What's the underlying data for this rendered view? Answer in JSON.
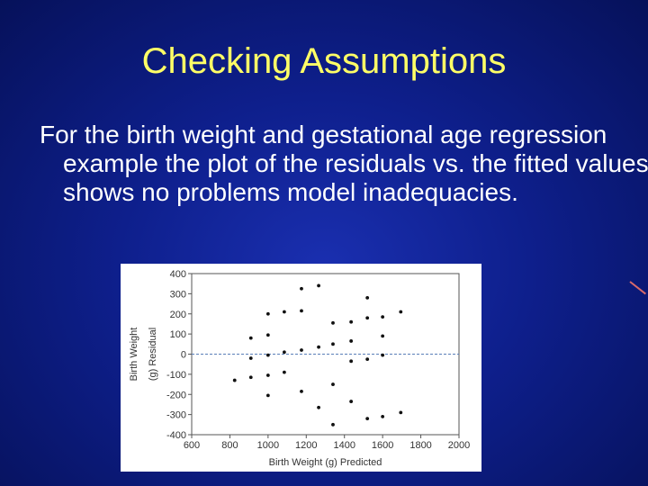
{
  "slide": {
    "title": "Checking Assumptions",
    "body": "For the birth weight and gestational age regression example the plot of the residuals vs. the fitted values shows no problems model inadequacies."
  },
  "chart_data": {
    "type": "scatter",
    "xlabel": "Birth Weight (g) Predicted",
    "ylabel_lines": [
      "Birth Weight",
      "(g) Residual"
    ],
    "xlim": [
      600,
      2000
    ],
    "ylim": [
      -400,
      400
    ],
    "xticks": [
      600,
      800,
      1000,
      1200,
      1400,
      1600,
      1800,
      2000
    ],
    "yticks": [
      400,
      300,
      200,
      100,
      0,
      -100,
      -200,
      -300,
      -400
    ],
    "reference_line": {
      "y": 0,
      "style": "dashed",
      "color": "#5a7fb8"
    },
    "grid": false,
    "points": [
      {
        "x": 825,
        "y": -130
      },
      {
        "x": 910,
        "y": 80
      },
      {
        "x": 910,
        "y": -20
      },
      {
        "x": 910,
        "y": -115
      },
      {
        "x": 1000,
        "y": 200
      },
      {
        "x": 1000,
        "y": 95
      },
      {
        "x": 1000,
        "y": -5
      },
      {
        "x": 1000,
        "y": -105
      },
      {
        "x": 1000,
        "y": -205
      },
      {
        "x": 1085,
        "y": 210
      },
      {
        "x": 1085,
        "y": 10
      },
      {
        "x": 1085,
        "y": -90
      },
      {
        "x": 1175,
        "y": 325
      },
      {
        "x": 1175,
        "y": 215
      },
      {
        "x": 1175,
        "y": 20
      },
      {
        "x": 1175,
        "y": -185
      },
      {
        "x": 1265,
        "y": 340
      },
      {
        "x": 1265,
        "y": 35
      },
      {
        "x": 1265,
        "y": -265
      },
      {
        "x": 1340,
        "y": 155
      },
      {
        "x": 1340,
        "y": 50
      },
      {
        "x": 1340,
        "y": -150
      },
      {
        "x": 1340,
        "y": -350
      },
      {
        "x": 1435,
        "y": 160
      },
      {
        "x": 1435,
        "y": 65
      },
      {
        "x": 1435,
        "y": -35
      },
      {
        "x": 1435,
        "y": -235
      },
      {
        "x": 1520,
        "y": 280
      },
      {
        "x": 1520,
        "y": 180
      },
      {
        "x": 1520,
        "y": -25
      },
      {
        "x": 1520,
        "y": -320
      },
      {
        "x": 1600,
        "y": 185
      },
      {
        "x": 1600,
        "y": 90
      },
      {
        "x": 1600,
        "y": -5
      },
      {
        "x": 1600,
        "y": -310
      },
      {
        "x": 1695,
        "y": 210
      },
      {
        "x": 1695,
        "y": -290
      }
    ]
  }
}
